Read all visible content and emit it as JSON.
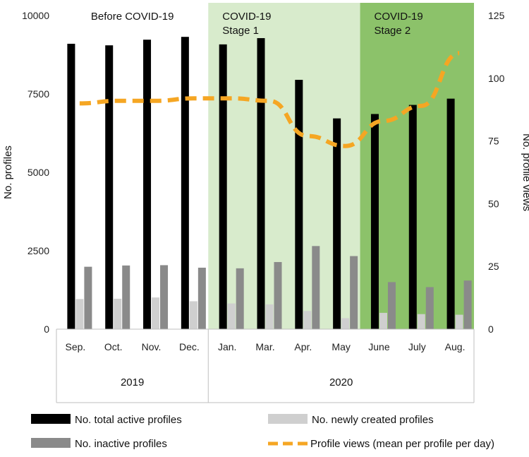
{
  "chart_data": {
    "type": "bar",
    "categories": [
      "Sep.",
      "Oct.",
      "Nov.",
      "Dec.",
      "Jan.",
      "Mar.",
      "Apr.",
      "May",
      "June",
      "July",
      "Aug."
    ],
    "years": [
      {
        "label": "2019",
        "span": [
          0,
          3
        ]
      },
      {
        "label": "2020",
        "span": [
          4,
          10
        ]
      }
    ],
    "periods": [
      {
        "label_lines": [
          "Before COVID-19"
        ],
        "span": [
          0,
          3
        ],
        "color": "#ffffff"
      },
      {
        "label_lines": [
          "COVID-19",
          "Stage 1"
        ],
        "span": [
          4,
          7
        ],
        "color": "#d8ebcc"
      },
      {
        "label_lines": [
          "COVID-19",
          "Stage 2"
        ],
        "span": [
          8,
          10
        ],
        "color": "#8cc26a"
      }
    ],
    "series": [
      {
        "name": "No. total active profiles",
        "axis": "left",
        "kind": "bar",
        "color": "#000000",
        "values": [
          9100,
          9050,
          9230,
          9320,
          9080,
          9280,
          7950,
          6720,
          6860,
          7150,
          7350
        ]
      },
      {
        "name": "No. newly created profiles",
        "axis": "left",
        "kind": "bar",
        "color": "#cfcfcf",
        "values": [
          960,
          970,
          1010,
          890,
          820,
          790,
          580,
          350,
          520,
          480,
          460
        ]
      },
      {
        "name": "No. inactive profiles",
        "axis": "left",
        "kind": "bar",
        "color": "#8a8a8a",
        "values": [
          1990,
          2030,
          2040,
          1960,
          1940,
          2140,
          2650,
          2330,
          1500,
          1340,
          1550
        ]
      },
      {
        "name": "Profile views (mean per profile per day)",
        "axis": "right",
        "kind": "line",
        "color": "#f5a623",
        "values": [
          90,
          91,
          91,
          92,
          92,
          91,
          77,
          73,
          83,
          89,
          110
        ]
      }
    ],
    "ylabel": "No. profiles",
    "y2label": "No. profile views",
    "ylim": [
      0,
      10000
    ],
    "y2lim": [
      0,
      125
    ],
    "yticks": [
      "0",
      "2500",
      "5000",
      "7500",
      "10000"
    ],
    "y2ticks": [
      "0",
      "25",
      "50",
      "75",
      "100",
      "125"
    ],
    "legend_placement": "bottom",
    "legend_order": [
      0,
      1,
      2,
      3
    ],
    "grid": false
  }
}
